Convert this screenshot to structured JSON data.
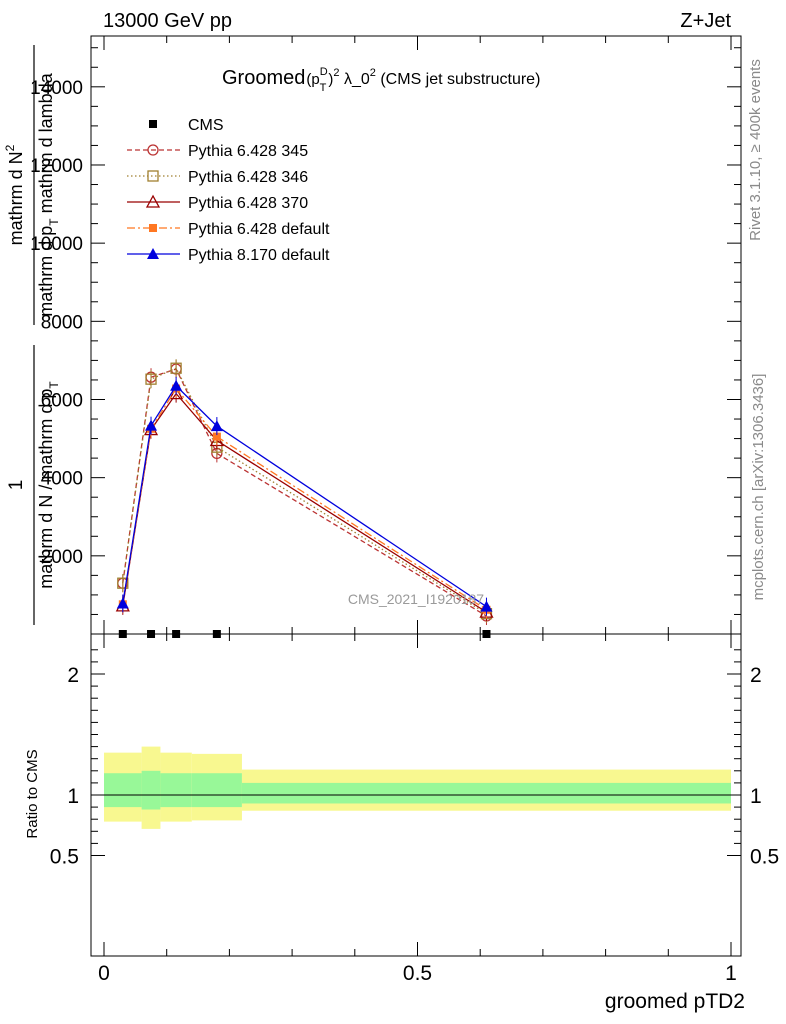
{
  "header": {
    "left_label": "13000 GeV pp",
    "right_label": "Z+Jet"
  },
  "side_text": {
    "top": "Rivet 3.1.10, ≥ 400k events",
    "bottom": "mcplots.cern.ch [arXiv:1306.3436]"
  },
  "colors": {
    "cms": "#000000",
    "pythia6_345": "#bb3333",
    "pythia6_346": "#a08030",
    "pythia6_370": "#990000",
    "pythia6_default": "#ff7722",
    "pythia8_default": "#0000dd",
    "band_inner": "#98f898",
    "band_outer": "#f8f890"
  },
  "chart_data": [
    {
      "type": "line",
      "title": "Groomed(p_T^D)^2 λ_0^2 (CMS jet substructure)",
      "title_parts": {
        "main": "Groomed",
        "p": "(p",
        "p_sup": "D",
        "p_sub": "T",
        "p_close": ")",
        "exp": "2",
        "lambda": " λ_0",
        "lambda_exp": "2",
        "tail": " (CMS jet substructure)"
      },
      "ylabel_parts": {
        "numerator": "mathrm d N",
        "numerator_sup": "2",
        "denominator": "mathrm d p",
        "denominator_sub": "T",
        "denominator_tail": " mathrm d lambda",
        "prefix_num": "1",
        "prefix_den": "mathrm d N / mathrm d p",
        "prefix_den_sub": "T"
      },
      "watermark": "CMS_2021_I1920187",
      "xlim": [
        -0.02,
        1.0
      ],
      "ylim": [
        0,
        15300
      ],
      "yticks": [
        2000,
        4000,
        6000,
        8000,
        10000,
        12000,
        14000
      ],
      "ytick_labels": [
        "2000",
        "4000",
        "6000",
        "8000",
        "10000",
        "12000",
        "14000"
      ],
      "legend_position": "top-left",
      "series": [
        {
          "name": "CMS",
          "key": "cms",
          "style": "data",
          "x": [
            0.03,
            0.075,
            0.115,
            0.18,
            0.61
          ],
          "y": [
            0,
            0,
            0,
            0,
            0
          ]
        },
        {
          "name": "Pythia 6.428 345",
          "key": "pythia6_345",
          "marker": "circle",
          "dash": "5,3",
          "x": [
            0.03,
            0.075,
            0.115,
            0.18,
            0.61
          ],
          "y": [
            1300,
            6570,
            6780,
            4620,
            460
          ]
        },
        {
          "name": "Pythia 6.428 346",
          "key": "pythia6_346",
          "marker": "square",
          "dash": "1.5,2.5",
          "x": [
            0.03,
            0.075,
            0.115,
            0.18,
            0.61
          ],
          "y": [
            1300,
            6520,
            6800,
            4780,
            520
          ]
        },
        {
          "name": "Pythia 6.428 370",
          "key": "pythia6_370",
          "marker": "triangle-open",
          "dash": "",
          "x": [
            0.03,
            0.075,
            0.115,
            0.18,
            0.61
          ],
          "y": [
            720,
            5230,
            6150,
            4950,
            560
          ]
        },
        {
          "name": "Pythia 6.428 default",
          "key": "pythia6_default",
          "marker": "square-filled",
          "dash": "8,3,2,3",
          "x": [
            0.03,
            0.075,
            0.115,
            0.18,
            0.61
          ],
          "y": [
            760,
            5250,
            6280,
            5050,
            620
          ]
        },
        {
          "name": "Pythia 8.170 default",
          "key": "pythia8_default",
          "marker": "triangle-filled",
          "dash": "",
          "x": [
            0.03,
            0.075,
            0.115,
            0.18,
            0.61
          ],
          "y": [
            780,
            5330,
            6350,
            5320,
            700
          ]
        }
      ]
    },
    {
      "type": "area",
      "ylabel": "Ratio to CMS",
      "xlabel": "groomed pTD2",
      "xlim": [
        -0.02,
        1.0
      ],
      "ylim": [
        0.35,
        2.3
      ],
      "yticks": [
        0.5,
        1,
        2
      ],
      "ytick_labels": [
        "0.5",
        "1",
        "2"
      ],
      "xticks": [
        0,
        0.5,
        1
      ],
      "xtick_labels": [
        "0",
        "0.5",
        "1"
      ],
      "bins": [
        {
          "x0": 0.0,
          "x1": 0.06,
          "inner": [
            0.9,
            1.18
          ],
          "outer": [
            0.78,
            1.35
          ]
        },
        {
          "x0": 0.06,
          "x1": 0.09,
          "inner": [
            0.88,
            1.2
          ],
          "outer": [
            0.72,
            1.4
          ]
        },
        {
          "x0": 0.09,
          "x1": 0.14,
          "inner": [
            0.9,
            1.18
          ],
          "outer": [
            0.78,
            1.35
          ]
        },
        {
          "x0": 0.14,
          "x1": 0.22,
          "inner": [
            0.9,
            1.18
          ],
          "outer": [
            0.79,
            1.34
          ]
        },
        {
          "x0": 0.22,
          "x1": 1.0,
          "inner": [
            0.93,
            1.1
          ],
          "outer": [
            0.87,
            1.21
          ]
        }
      ],
      "reference": 1
    }
  ]
}
